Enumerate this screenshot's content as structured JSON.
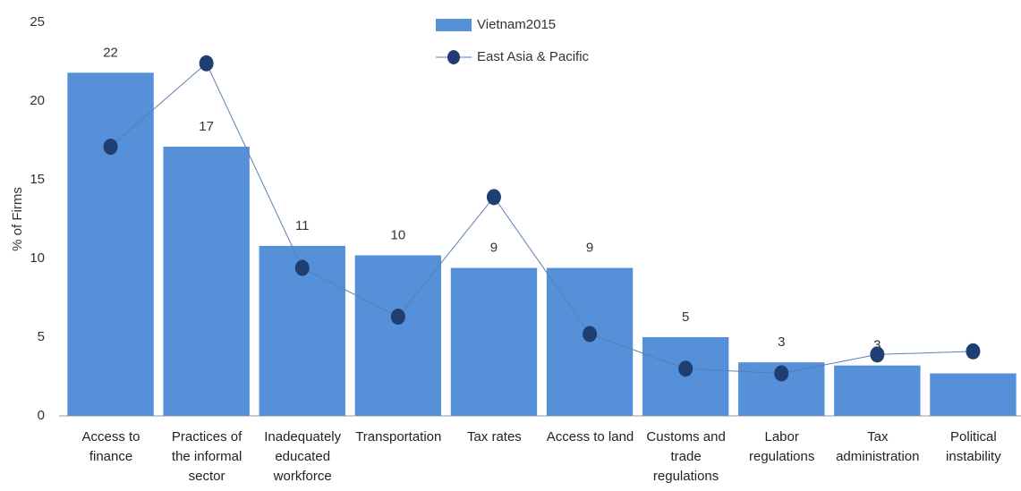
{
  "chart_data": {
    "type": "bar_line",
    "y_label": "% of Firms",
    "categories": [
      "Access to\nfinance",
      "Practices of\nthe informal\nsector",
      "Inadequately\neducated\nworkforce",
      "Transportation",
      "Tax rates",
      "Access to land",
      "Customs and\ntrade\nregulations",
      "Labor\nregulations",
      "Tax\nadministration",
      "Political\ninstability"
    ],
    "series": [
      {
        "name": "Vietnam2015",
        "kind": "bar",
        "color": "#5590d8",
        "values": [
          21.8,
          17.1,
          10.8,
          10.2,
          9.4,
          9.4,
          5.0,
          3.4,
          3.2,
          2.7
        ],
        "value_labels": [
          "22",
          "17",
          "11",
          "10",
          "9",
          "9",
          "5",
          "3",
          "3",
          null
        ]
      },
      {
        "name": "East Asia & Pacific",
        "kind": "line",
        "color": "#1f3f73",
        "values": [
          17.1,
          22.4,
          9.4,
          6.3,
          13.9,
          5.2,
          3.0,
          2.7,
          3.9,
          4.1
        ]
      }
    ],
    "ylim": [
      0,
      25
    ],
    "yticks": [
      0,
      5,
      10,
      15,
      20,
      25
    ],
    "grid": false
  }
}
